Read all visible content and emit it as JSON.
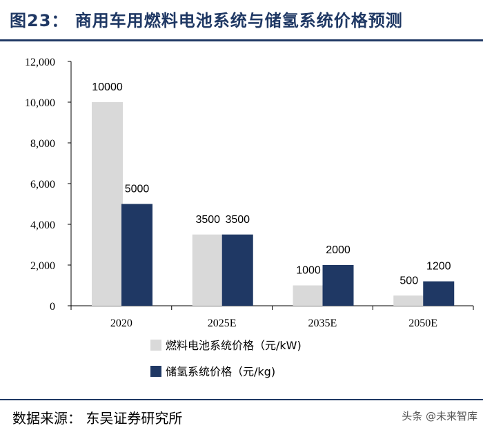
{
  "header": {
    "title": "图23：  商用车用燃料电池系统与储氢系统价格预测"
  },
  "footer": {
    "source": "数据来源：  东吴证券研究所",
    "watermark": "头条 @未来智库"
  },
  "colors": {
    "series1": "#d9d9d9",
    "series2": "#1f3864",
    "axis": "#000000",
    "title": "#1f3864"
  },
  "chart_data": {
    "type": "bar",
    "title": "",
    "xlabel": "",
    "ylabel": "",
    "ylim": [
      0,
      12000
    ],
    "yticks": [
      0,
      2000,
      4000,
      6000,
      8000,
      10000,
      12000
    ],
    "ytick_labels": [
      "0",
      "2,000",
      "4,000",
      "6,000",
      "8,000",
      "10,000",
      "12,000"
    ],
    "categories": [
      "2020",
      "2025E",
      "2035E",
      "2050E"
    ],
    "series": [
      {
        "name": "燃料电池系统价格（元/kW)",
        "values": [
          10000,
          3500,
          1000,
          500
        ],
        "labels": [
          "10000",
          "3500",
          "1000",
          "500"
        ]
      },
      {
        "name": "储氢系统价格（元/kg)",
        "values": [
          5000,
          3500,
          2000,
          1200
        ],
        "labels": [
          "5000",
          "3500",
          "2000",
          "1200"
        ]
      }
    ],
    "legend": "bottom-center"
  }
}
